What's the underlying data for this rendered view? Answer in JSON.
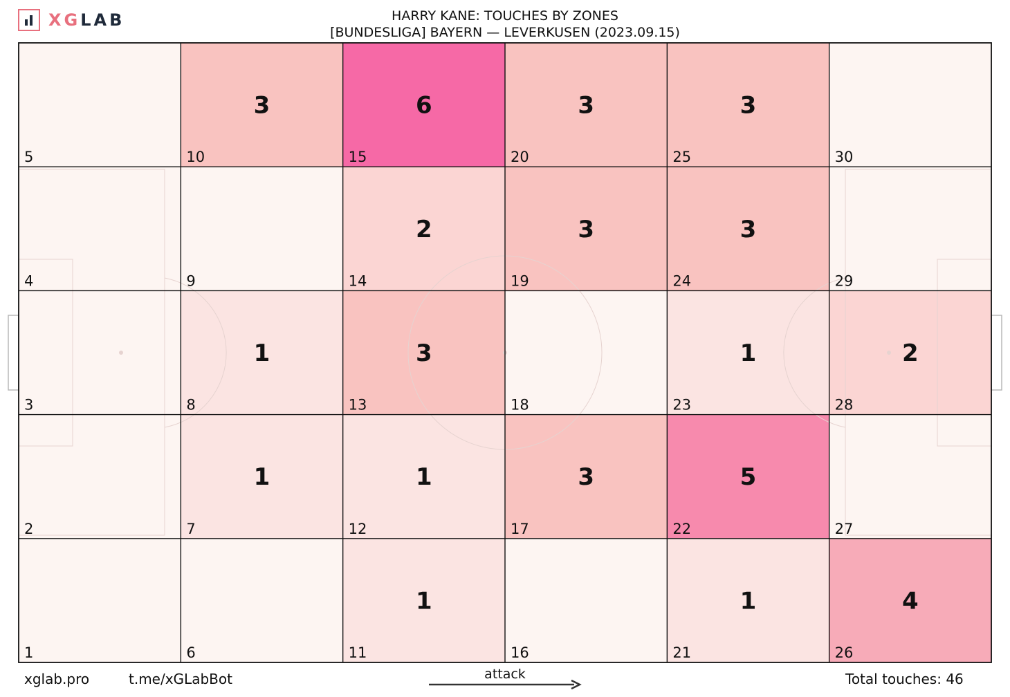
{
  "brand": {
    "logo_x_g": "XG",
    "logo_lab": "LAB",
    "logo_color": "#e8707e",
    "logo_dark": "#1f2a3a"
  },
  "header": {
    "title": "HARRY KANE: TOUCHES BY ZONES",
    "subtitle": "[BUNDESLIGA] BAYERN —  LEVERKUSEN (2023.09.15)"
  },
  "footer": {
    "site": "xglab.pro",
    "bot": "t.me/xGLabBot",
    "attack_label": "attack",
    "total": "Total touches: 46"
  },
  "chart_data": {
    "type": "heatmap",
    "title": "HARRY KANE: TOUCHES BY ZONES",
    "subtitle": "[BUNDESLIGA] BAYERN —  LEVERKUSEN (2023.09.15)",
    "columns": 6,
    "rows": 5,
    "zones": [
      {
        "zone": 1,
        "count": 0
      },
      {
        "zone": 2,
        "count": 0
      },
      {
        "zone": 3,
        "count": 0
      },
      {
        "zone": 4,
        "count": 0
      },
      {
        "zone": 5,
        "count": 0
      },
      {
        "zone": 6,
        "count": 0
      },
      {
        "zone": 7,
        "count": 1
      },
      {
        "zone": 8,
        "count": 1
      },
      {
        "zone": 9,
        "count": 0
      },
      {
        "zone": 10,
        "count": 3
      },
      {
        "zone": 11,
        "count": 1
      },
      {
        "zone": 12,
        "count": 1
      },
      {
        "zone": 13,
        "count": 3
      },
      {
        "zone": 14,
        "count": 2
      },
      {
        "zone": 15,
        "count": 6
      },
      {
        "zone": 16,
        "count": 0
      },
      {
        "zone": 17,
        "count": 3
      },
      {
        "zone": 18,
        "count": 0
      },
      {
        "zone": 19,
        "count": 3
      },
      {
        "zone": 20,
        "count": 3
      },
      {
        "zone": 21,
        "count": 1
      },
      {
        "zone": 22,
        "count": 5
      },
      {
        "zone": 23,
        "count": 1
      },
      {
        "zone": 24,
        "count": 3
      },
      {
        "zone": 25,
        "count": 3
      },
      {
        "zone": 26,
        "count": 4
      },
      {
        "zone": 27,
        "count": 0
      },
      {
        "zone": 28,
        "count": 2
      },
      {
        "zone": 29,
        "count": 0
      },
      {
        "zone": 30,
        "count": 0
      }
    ],
    "total_touches": 46,
    "colors": {
      "0": "#fdf5f2",
      "1": "#fbe4e2",
      "2": "#fbd5d3",
      "3": "#f9c3c0",
      "4": "#f7abb8",
      "5": "#f78aad",
      "6": "#f669a6"
    }
  }
}
